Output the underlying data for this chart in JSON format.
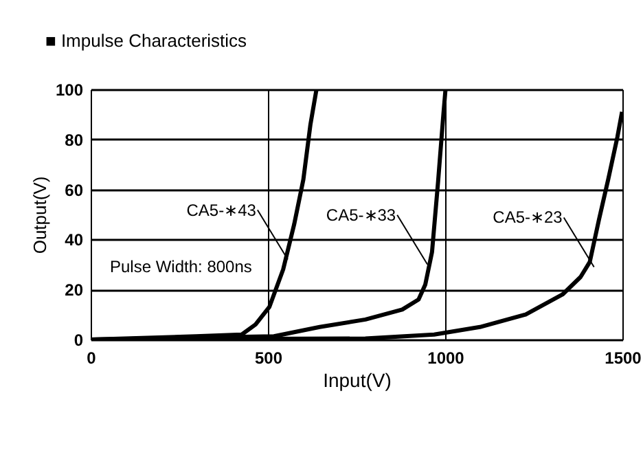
{
  "chart_data": {
    "type": "line",
    "title": "■ Impulse Characteristics",
    "xlabel": "Input(V)",
    "ylabel": "Output(V)",
    "xlim": [
      0,
      1500
    ],
    "ylim": [
      0,
      100
    ],
    "xticks": [
      0,
      500,
      1000,
      1500
    ],
    "yticks": [
      0,
      20,
      40,
      60,
      80,
      100
    ],
    "grid": true,
    "marker": "none",
    "line_style": "solid",
    "series": [
      {
        "color": "#000000",
        "x": [
          0,
          297,
          426,
          465,
          504,
          543,
          574,
          600,
          620,
          637
        ],
        "values": [
          0,
          1.3,
          2,
          6,
          13,
          28,
          46,
          64,
          86,
          100
        ]
      },
      {
        "color": "#000000",
        "x": [
          0,
          517,
          646,
          775,
          879,
          925,
          944,
          963,
          980,
          995,
          1001
        ],
        "values": [
          0,
          1.3,
          5,
          8,
          12,
          16,
          22,
          35,
          63,
          90,
          100
        ]
      },
      {
        "color": "#000000",
        "x": [
          0,
          775,
          969,
          1098,
          1227,
          1331,
          1382,
          1408,
          1434,
          1460,
          1486,
          1499
        ],
        "values": [
          0,
          0.4,
          2,
          5,
          10,
          18,
          25,
          31,
          48,
          64,
          81,
          91
        ]
      }
    ],
    "annotations": [
      {
        "text": "CA5-∗43",
        "x": 556,
        "y": 32
      },
      {
        "text": "CA5-∗33",
        "x": 950,
        "y": 30
      },
      {
        "text": "CA5-∗23",
        "x": 1420,
        "y": 29
      },
      "Pulse Width: 800ns"
    ]
  }
}
